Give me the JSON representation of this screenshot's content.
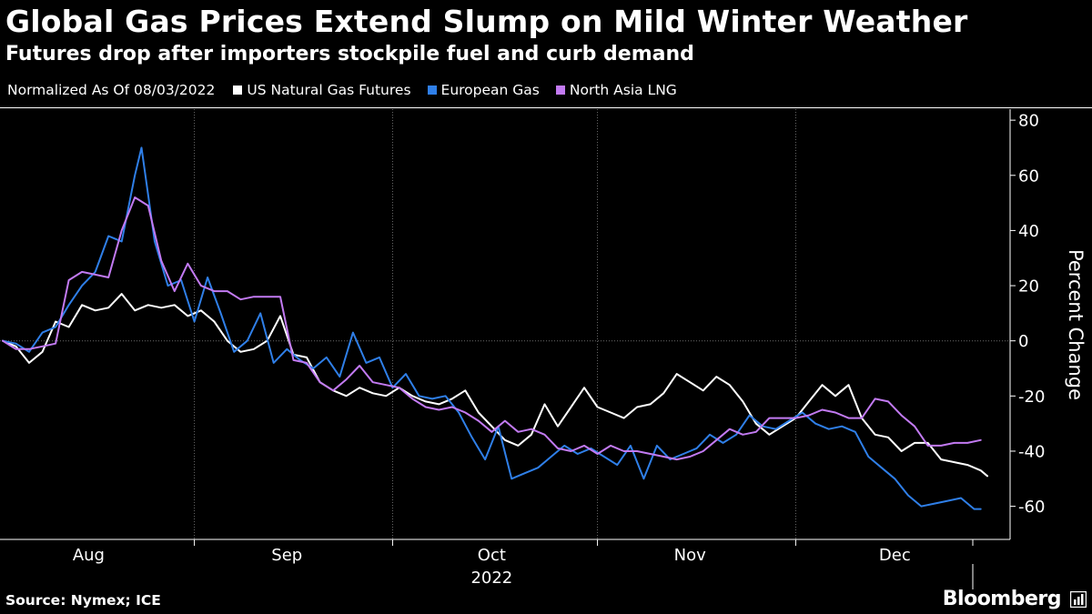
{
  "header": {
    "title": "Global Gas Prices Extend Slump on Mild Winter Weather",
    "subtitle": "Futures drop after importers stockpile fuel and curb demand"
  },
  "legend": {
    "note": "Normalized As Of 08/03/2022"
  },
  "footer": {
    "source": "Source: Nymex; ICE",
    "brand": "Bloomberg"
  },
  "chart_data": {
    "type": "line",
    "title": "Global Gas Prices Extend Slump on Mild Winter Weather",
    "subtitle": "Futures drop after importers stockpile fuel and curb demand",
    "ylabel": "Percent Change",
    "ylim": [
      -72,
      84
    ],
    "yticks": [
      80,
      60,
      40,
      20,
      0,
      -20,
      -40,
      -60
    ],
    "x_start": "2022-08-03",
    "x_end": "2022-12-30",
    "month_labels": [
      {
        "label": "Aug",
        "date": "2022-08-16"
      },
      {
        "label": "Sep",
        "date": "2022-09-15"
      },
      {
        "label": "Oct",
        "date": "2022-10-16"
      },
      {
        "label": "Nov",
        "date": "2022-11-15"
      },
      {
        "label": "Dec",
        "date": "2022-12-16"
      }
    ],
    "year_label": "2022",
    "gridlines": [
      "2022-09-01",
      "2022-10-01",
      "2022-11-01",
      "2022-12-01"
    ],
    "grid": true,
    "series": [
      {
        "name": "US Natural Gas Futures",
        "color": "#ffffff",
        "dates": [
          "2022-08-03",
          "2022-08-05",
          "2022-08-07",
          "2022-08-09",
          "2022-08-11",
          "2022-08-13",
          "2022-08-15",
          "2022-08-17",
          "2022-08-19",
          "2022-08-21",
          "2022-08-23",
          "2022-08-25",
          "2022-08-27",
          "2022-08-29",
          "2022-08-31",
          "2022-09-02",
          "2022-09-04",
          "2022-09-06",
          "2022-09-08",
          "2022-09-10",
          "2022-09-12",
          "2022-09-14",
          "2022-09-16",
          "2022-09-18",
          "2022-09-20",
          "2022-09-22",
          "2022-09-24",
          "2022-09-26",
          "2022-09-28",
          "2022-09-30",
          "2022-10-02",
          "2022-10-04",
          "2022-10-06",
          "2022-10-08",
          "2022-10-10",
          "2022-10-12",
          "2022-10-14",
          "2022-10-16",
          "2022-10-18",
          "2022-10-20",
          "2022-10-22",
          "2022-10-24",
          "2022-10-26",
          "2022-10-28",
          "2022-10-30",
          "2022-11-01",
          "2022-11-03",
          "2022-11-05",
          "2022-11-07",
          "2022-11-09",
          "2022-11-11",
          "2022-11-13",
          "2022-11-15",
          "2022-11-17",
          "2022-11-19",
          "2022-11-21",
          "2022-11-23",
          "2022-11-25",
          "2022-11-27",
          "2022-11-29",
          "2022-12-01",
          "2022-12-03",
          "2022-12-05",
          "2022-12-07",
          "2022-12-09",
          "2022-12-11",
          "2022-12-13",
          "2022-12-15",
          "2022-12-17",
          "2022-12-19",
          "2022-12-21",
          "2022-12-23",
          "2022-12-25",
          "2022-12-27",
          "2022-12-29",
          "2022-12-30"
        ],
        "values": [
          0,
          -2,
          -8,
          -4,
          7,
          5,
          13,
          11,
          12,
          17,
          11,
          13,
          12,
          13,
          9,
          11,
          7,
          0,
          -4,
          -3,
          0,
          9,
          -5,
          -6,
          -15,
          -18,
          -20,
          -17,
          -19,
          -20,
          -17,
          -20,
          -22,
          -23,
          -21,
          -18,
          -26,
          -31,
          -36,
          -38,
          -34,
          -23,
          -31,
          -24,
          -17,
          -24,
          -26,
          -28,
          -24,
          -23,
          -19,
          -12,
          -15,
          -18,
          -13,
          -16,
          -22,
          -30,
          -34,
          -31,
          -28,
          -22,
          -16,
          -20,
          -16,
          -28,
          -34,
          -35,
          -40,
          -37,
          -37,
          -43,
          -44,
          -45,
          -47,
          -49
        ]
      },
      {
        "name": "European Gas",
        "color": "#2f7fe8",
        "dates": [
          "2022-08-03",
          "2022-08-05",
          "2022-08-07",
          "2022-08-09",
          "2022-08-11",
          "2022-08-13",
          "2022-08-15",
          "2022-08-17",
          "2022-08-19",
          "2022-08-21",
          "2022-08-23",
          "2022-08-24",
          "2022-08-26",
          "2022-08-28",
          "2022-08-30",
          "2022-09-01",
          "2022-09-03",
          "2022-09-05",
          "2022-09-07",
          "2022-09-09",
          "2022-09-11",
          "2022-09-13",
          "2022-09-15",
          "2022-09-17",
          "2022-09-19",
          "2022-09-21",
          "2022-09-23",
          "2022-09-25",
          "2022-09-27",
          "2022-09-29",
          "2022-10-01",
          "2022-10-03",
          "2022-10-05",
          "2022-10-07",
          "2022-10-09",
          "2022-10-11",
          "2022-10-13",
          "2022-10-15",
          "2022-10-17",
          "2022-10-19",
          "2022-10-21",
          "2022-10-23",
          "2022-10-25",
          "2022-10-27",
          "2022-10-29",
          "2022-10-31",
          "2022-11-02",
          "2022-11-04",
          "2022-11-06",
          "2022-11-08",
          "2022-11-10",
          "2022-11-12",
          "2022-11-14",
          "2022-11-16",
          "2022-11-18",
          "2022-11-20",
          "2022-11-22",
          "2022-11-24",
          "2022-11-26",
          "2022-11-28",
          "2022-11-30",
          "2022-12-02",
          "2022-12-04",
          "2022-12-06",
          "2022-12-08",
          "2022-12-10",
          "2022-12-12",
          "2022-12-14",
          "2022-12-16",
          "2022-12-18",
          "2022-12-20",
          "2022-12-22",
          "2022-12-24",
          "2022-12-26",
          "2022-12-28",
          "2022-12-29"
        ],
        "values": [
          0,
          -1,
          -4,
          3,
          5,
          13,
          20,
          25,
          38,
          36,
          60,
          70,
          36,
          20,
          22,
          7,
          23,
          10,
          -4,
          0,
          10,
          -8,
          -3,
          -7,
          -10,
          -6,
          -13,
          3,
          -8,
          -6,
          -17,
          -12,
          -20,
          -21,
          -20,
          -26,
          -35,
          -43,
          -31,
          -50,
          -48,
          -46,
          -42,
          -38,
          -41,
          -39,
          -42,
          -45,
          -38,
          -50,
          -38,
          -43,
          -41,
          -39,
          -34,
          -37,
          -34,
          -27,
          -31,
          -32,
          -29,
          -26,
          -30,
          -32,
          -31,
          -33,
          -42,
          -46,
          -50,
          -56,
          -60,
          -59,
          -58,
          -57,
          -61,
          -61
        ]
      },
      {
        "name": "North Asia LNG",
        "color": "#c27af2",
        "dates": [
          "2022-08-03",
          "2022-08-05",
          "2022-08-07",
          "2022-08-09",
          "2022-08-11",
          "2022-08-13",
          "2022-08-15",
          "2022-08-17",
          "2022-08-19",
          "2022-08-21",
          "2022-08-23",
          "2022-08-25",
          "2022-08-27",
          "2022-08-29",
          "2022-08-31",
          "2022-09-02",
          "2022-09-04",
          "2022-09-06",
          "2022-09-08",
          "2022-09-10",
          "2022-09-12",
          "2022-09-14",
          "2022-09-16",
          "2022-09-18",
          "2022-09-20",
          "2022-09-22",
          "2022-09-24",
          "2022-09-26",
          "2022-09-28",
          "2022-09-30",
          "2022-10-02",
          "2022-10-04",
          "2022-10-06",
          "2022-10-08",
          "2022-10-10",
          "2022-10-12",
          "2022-10-14",
          "2022-10-16",
          "2022-10-18",
          "2022-10-20",
          "2022-10-22",
          "2022-10-24",
          "2022-10-26",
          "2022-10-28",
          "2022-10-30",
          "2022-11-01",
          "2022-11-03",
          "2022-11-05",
          "2022-11-07",
          "2022-11-09",
          "2022-11-11",
          "2022-11-13",
          "2022-11-15",
          "2022-11-17",
          "2022-11-19",
          "2022-11-21",
          "2022-11-23",
          "2022-11-25",
          "2022-11-27",
          "2022-11-29",
          "2022-12-01",
          "2022-12-03",
          "2022-12-05",
          "2022-12-07",
          "2022-12-09",
          "2022-12-11",
          "2022-12-13",
          "2022-12-15",
          "2022-12-17",
          "2022-12-19",
          "2022-12-21",
          "2022-12-23",
          "2022-12-25",
          "2022-12-27",
          "2022-12-29"
        ],
        "values": [
          0,
          -3,
          -3,
          -2,
          -1,
          22,
          25,
          24,
          23,
          40,
          52,
          49,
          29,
          18,
          28,
          20,
          18,
          18,
          15,
          16,
          16,
          16,
          -7,
          -8,
          -15,
          -18,
          -14,
          -9,
          -15,
          -16,
          -17,
          -21,
          -24,
          -25,
          -24,
          -26,
          -29,
          -33,
          -29,
          -33,
          -32,
          -34,
          -39,
          -40,
          -38,
          -41,
          -38,
          -40,
          -40,
          -41,
          -42,
          -43,
          -42,
          -40,
          -36,
          -32,
          -34,
          -33,
          -28,
          -28,
          -28,
          -27,
          -25,
          -26,
          -28,
          -28,
          -21,
          -22,
          -27,
          -31,
          -38,
          -38,
          -37,
          -37,
          -36
        ]
      }
    ]
  }
}
